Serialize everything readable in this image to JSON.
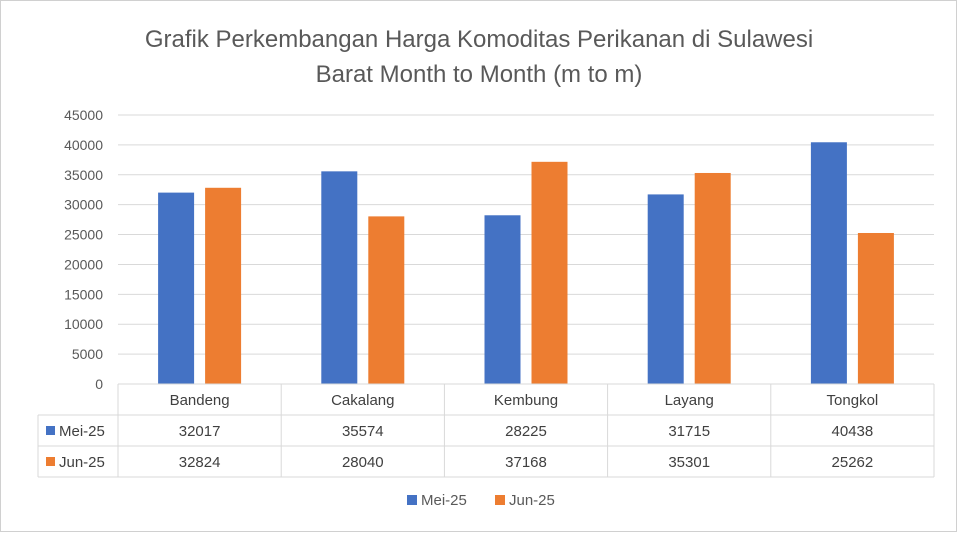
{
  "chart_data": {
    "type": "bar",
    "title": "Grafik Perkembangan  Harga Komoditas Perikanan di Sulawesi",
    "subtitle": "Barat Month to Month (m to m)",
    "categories": [
      "Bandeng",
      "Cakalang",
      "Kembung",
      "Layang",
      "Tongkol"
    ],
    "series": [
      {
        "name": "Mei-25",
        "color": "#4472C4",
        "values": [
          32017,
          35574,
          28225,
          31715,
          40438
        ]
      },
      {
        "name": "Jun-25",
        "color": "#ED7D31",
        "values": [
          32824,
          28040,
          37168,
          35301,
          25262
        ]
      }
    ],
    "ylim": [
      0,
      45000
    ],
    "yticks": [
      0,
      5000,
      10000,
      15000,
      20000,
      25000,
      30000,
      35000,
      40000,
      45000
    ],
    "grid": true,
    "legend": "bottom",
    "data_table": true,
    "xlabel": "",
    "ylabel": ""
  }
}
